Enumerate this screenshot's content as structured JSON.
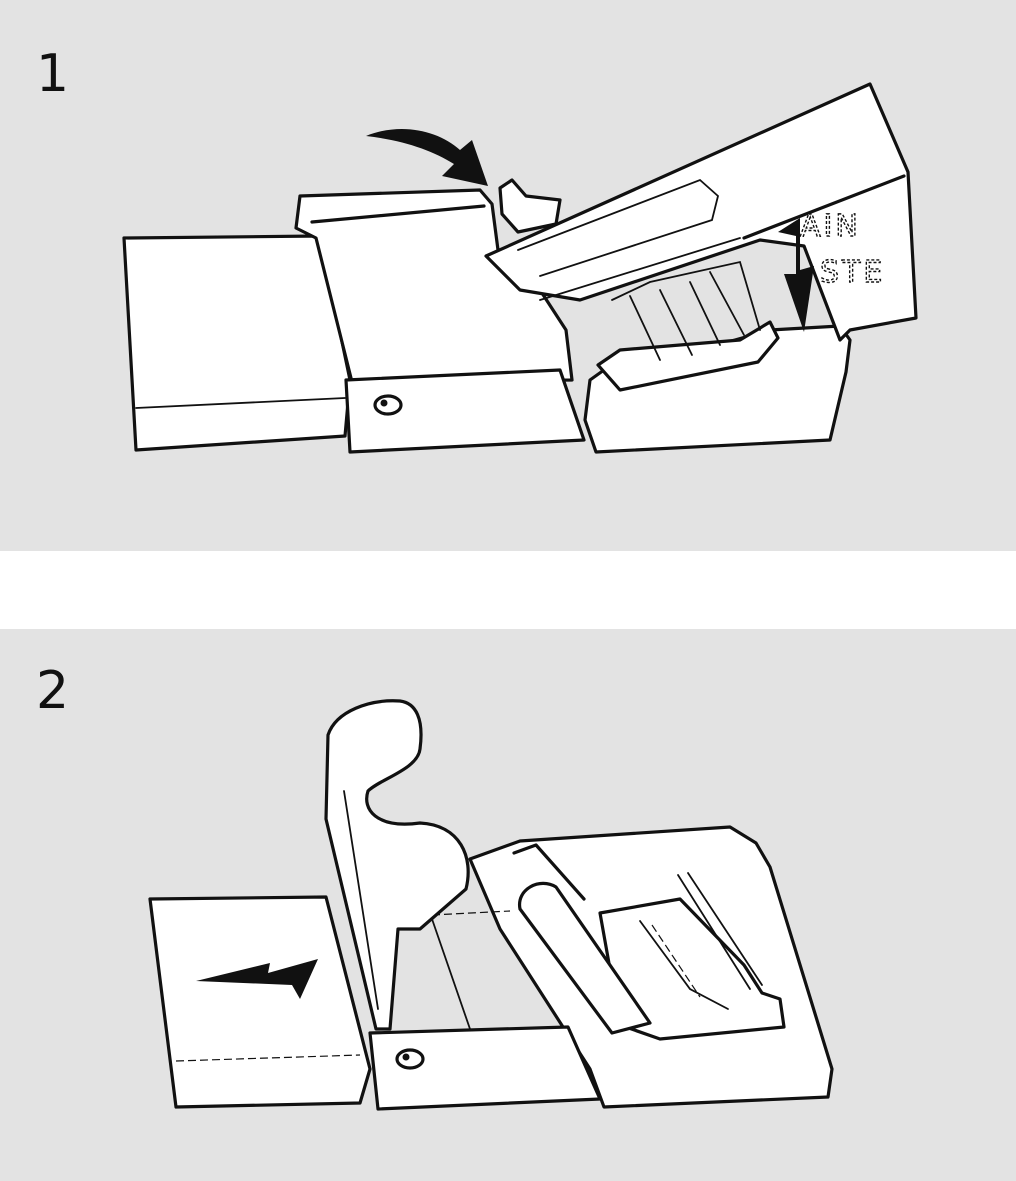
{
  "colors": {
    "panel_background": "#e3e3e3",
    "page_background": "#ffffff",
    "line_art": "#111111",
    "fill": "#ffffff"
  },
  "steps": [
    {
      "number": "1",
      "stamp_line_1": "AIN",
      "stamp_line_2": "STE",
      "icons": [
        "curved-arrow-up-icon",
        "arrow-down-icon"
      ]
    },
    {
      "number": "2",
      "icons": [
        "arrow-left-icon"
      ]
    }
  ]
}
